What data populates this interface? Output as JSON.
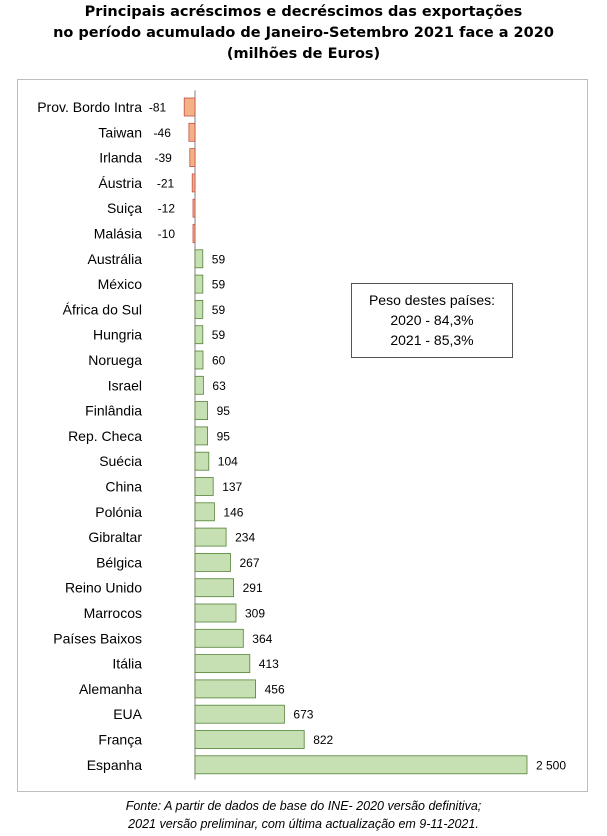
{
  "title": {
    "line1": "Principais acréscimos e decréscimos das exportações",
    "line2": "no período acumulado de Janeiro-Setembro 2021 face a 2020",
    "line3": "(milhões de Euros)"
  },
  "note": {
    "line1": "Peso destes países:",
    "line2": "2020 - 84,3%",
    "line3": "2021 - 85,3%"
  },
  "footer": {
    "line1": "Fonte: A partir de dados de base do INE- 2020 versão definitiva;",
    "line2": "2021 versão preliminar, com última actualização em 9-11-2021."
  },
  "colors": {
    "negative_fill": "#f4b183",
    "negative_stroke": "#c0504d",
    "positive_fill": "#c6e0b4",
    "positive_stroke": "#548235"
  },
  "chart_data": {
    "type": "bar",
    "orientation": "horizontal",
    "categories": [
      "Prov. Bordo Intra",
      "Taiwan",
      "Irlanda",
      "Áustria",
      "Suiça",
      "Malásia",
      "Austrália",
      "México",
      "África do Sul",
      "Hungria",
      "Noruega",
      "Israel",
      "Finlândia",
      "Rep. Checa",
      "Suécia",
      "China",
      "Polónia",
      "Gibraltar",
      "Bélgica",
      "Reino Unido",
      "Marrocos",
      "Países Baixos",
      "Itália",
      "Alemanha",
      "EUA",
      "França",
      "Espanha"
    ],
    "values": [
      -81,
      -46,
      -39,
      -21,
      -12,
      -10,
      59,
      59,
      59,
      59,
      60,
      63,
      95,
      95,
      104,
      137,
      146,
      234,
      267,
      291,
      309,
      364,
      413,
      456,
      673,
      822,
      2500
    ],
    "value_labels": [
      "-81",
      "-46",
      "-39",
      "-21",
      "-12",
      "-10",
      "59",
      "59",
      "59",
      "59",
      "60",
      "63",
      "95",
      "95",
      "104",
      "137",
      "146",
      "234",
      "267",
      "291",
      "309",
      "364",
      "413",
      "456",
      "673",
      "822",
      "2 500"
    ],
    "xlim": [
      -81,
      2500
    ],
    "grid": false,
    "legend": "none"
  }
}
